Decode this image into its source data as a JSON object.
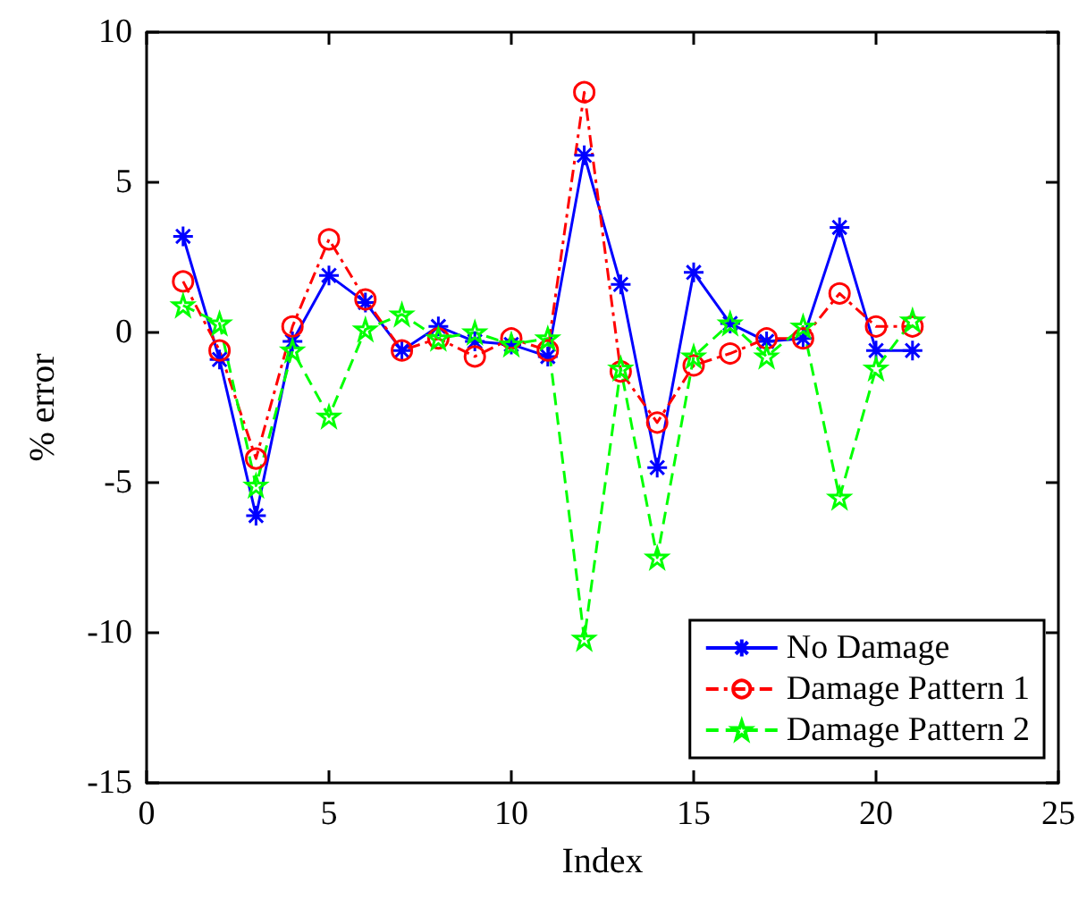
{
  "chart_data": {
    "type": "line",
    "xlabel": "Index",
    "ylabel": "% error",
    "x": [
      1,
      2,
      3,
      4,
      5,
      6,
      7,
      8,
      9,
      10,
      11,
      12,
      13,
      14,
      15,
      16,
      17,
      18,
      19,
      20,
      21
    ],
    "series": [
      {
        "name": "No Damage",
        "color": "#0000ff",
        "marker": "cross",
        "line_style": "solid",
        "values": [
          3.2,
          -0.9,
          -6.1,
          -0.3,
          1.9,
          1.0,
          -0.6,
          0.2,
          -0.3,
          -0.4,
          -0.8,
          5.9,
          1.6,
          -4.5,
          2.0,
          0.3,
          -0.3,
          -0.2,
          3.5,
          -0.6,
          -0.6
        ]
      },
      {
        "name": "Damage Pattern 1",
        "color": "#ff0000",
        "marker": "circle",
        "line_style": "dashdot",
        "values": [
          1.7,
          -0.6,
          -4.2,
          0.2,
          3.1,
          1.1,
          -0.6,
          -0.2,
          -0.8,
          -0.2,
          -0.6,
          8.0,
          -1.3,
          -3.0,
          -1.1,
          -0.7,
          -0.2,
          -0.2,
          1.3,
          0.2,
          0.2
        ]
      },
      {
        "name": "Damage Pattern 2",
        "color": "#00ff00",
        "marker": "star",
        "line_style": "dashed",
        "values": [
          0.9,
          0.3,
          -5.1,
          -0.6,
          -2.8,
          0.1,
          0.6,
          -0.2,
          0.0,
          -0.4,
          -0.2,
          -10.2,
          -1.2,
          -7.5,
          -0.8,
          0.3,
          -0.8,
          0.2,
          -5.5,
          -1.2,
          0.4
        ]
      }
    ],
    "xlim": [
      0,
      25
    ],
    "xticks": [
      0,
      5,
      10,
      15,
      20,
      25
    ],
    "ylim": [
      -15,
      10
    ],
    "yticks": [
      -15,
      -10,
      -5,
      0,
      5,
      10
    ],
    "grid": false,
    "legend": "bottom right"
  }
}
